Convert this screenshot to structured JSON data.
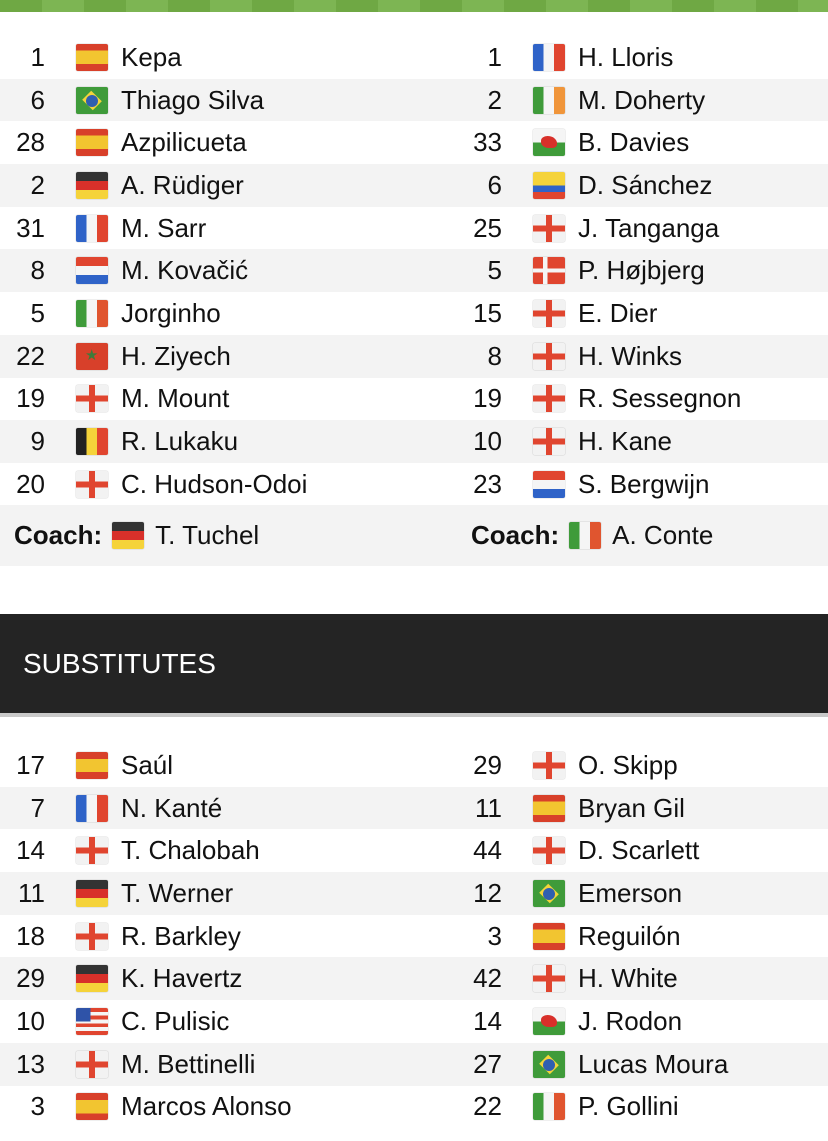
{
  "lineups": {
    "home": [
      {
        "number": "1",
        "flag": "es",
        "name": "Kepa"
      },
      {
        "number": "6",
        "flag": "br",
        "name": "Thiago Silva"
      },
      {
        "number": "28",
        "flag": "es",
        "name": "Azpilicueta"
      },
      {
        "number": "2",
        "flag": "de",
        "name": "A. Rüdiger"
      },
      {
        "number": "31",
        "flag": "fr",
        "name": "M. Sarr"
      },
      {
        "number": "8",
        "flag": "hr",
        "name": "M. Kovačić"
      },
      {
        "number": "5",
        "flag": "it",
        "name": "Jorginho"
      },
      {
        "number": "22",
        "flag": "ma",
        "name": "H. Ziyech"
      },
      {
        "number": "19",
        "flag": "en",
        "name": "M. Mount"
      },
      {
        "number": "9",
        "flag": "be",
        "name": "R. Lukaku"
      },
      {
        "number": "20",
        "flag": "en",
        "name": "C. Hudson-Odoi"
      }
    ],
    "away": [
      {
        "number": "1",
        "flag": "fr",
        "name": "H. Lloris"
      },
      {
        "number": "2",
        "flag": "ie",
        "name": "M. Doherty"
      },
      {
        "number": "33",
        "flag": "wls",
        "name": "B. Davies"
      },
      {
        "number": "6",
        "flag": "co",
        "name": "D. Sánchez"
      },
      {
        "number": "25",
        "flag": "en",
        "name": "J. Tanganga"
      },
      {
        "number": "5",
        "flag": "dk",
        "name": "P. Højbjerg"
      },
      {
        "number": "15",
        "flag": "en",
        "name": "E. Dier"
      },
      {
        "number": "8",
        "flag": "en",
        "name": "H. Winks"
      },
      {
        "number": "19",
        "flag": "en",
        "name": "R. Sessegnon"
      },
      {
        "number": "10",
        "flag": "en",
        "name": "H. Kane"
      },
      {
        "number": "23",
        "flag": "nl",
        "name": "S. Bergwijn"
      }
    ]
  },
  "coaches": {
    "label": "Coach:",
    "home": {
      "flag": "de",
      "name": "T. Tuchel"
    },
    "away": {
      "flag": "it",
      "name": "A. Conte"
    }
  },
  "substitutes": {
    "title": "SUBSTITUTES",
    "home": [
      {
        "number": "17",
        "flag": "es",
        "name": "Saúl"
      },
      {
        "number": "7",
        "flag": "fr",
        "name": "N. Kanté"
      },
      {
        "number": "14",
        "flag": "en",
        "name": "T. Chalobah"
      },
      {
        "number": "11",
        "flag": "de",
        "name": "T. Werner"
      },
      {
        "number": "18",
        "flag": "en",
        "name": "R. Barkley"
      },
      {
        "number": "29",
        "flag": "de",
        "name": "K. Havertz"
      },
      {
        "number": "10",
        "flag": "us",
        "name": "C. Pulisic"
      },
      {
        "number": "13",
        "flag": "en",
        "name": "M. Bettinelli"
      },
      {
        "number": "3",
        "flag": "es",
        "name": "Marcos Alonso"
      }
    ],
    "away": [
      {
        "number": "29",
        "flag": "en",
        "name": "O. Skipp"
      },
      {
        "number": "11",
        "flag": "es",
        "name": "Bryan Gil"
      },
      {
        "number": "44",
        "flag": "en",
        "name": "D. Scarlett"
      },
      {
        "number": "12",
        "flag": "br",
        "name": "Emerson"
      },
      {
        "number": "3",
        "flag": "es",
        "name": "Reguilón"
      },
      {
        "number": "42",
        "flag": "en",
        "name": "H. White"
      },
      {
        "number": "14",
        "flag": "wls",
        "name": "J. Rodon"
      },
      {
        "number": "27",
        "flag": "br",
        "name": "Lucas Moura"
      },
      {
        "number": "22",
        "flag": "it",
        "name": "P. Gollini"
      }
    ]
  },
  "colors": {
    "stripe": "#6fa844",
    "header_bg": "#242424",
    "alt_row": "#f3f3f3"
  }
}
